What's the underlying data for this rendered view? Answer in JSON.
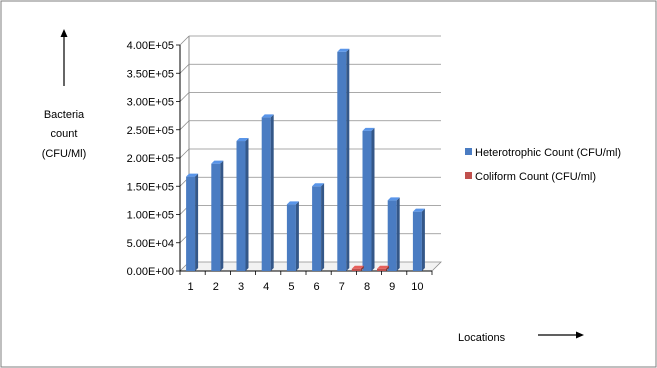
{
  "chart_data": {
    "type": "bar",
    "categories": [
      "1",
      "2",
      "3",
      "4",
      "5",
      "6",
      "7",
      "8",
      "9",
      "10"
    ],
    "series": [
      {
        "name": "Heterotrophic Count (CFU/ml)",
        "values": [
          167000,
          190000,
          230000,
          272000,
          118000,
          150000,
          388000,
          248000,
          125000,
          105000
        ]
      },
      {
        "name": "Coliform Count (CFU/ml)",
        "values": [
          0,
          0,
          0,
          0,
          0,
          0,
          4000,
          4000,
          0,
          0
        ]
      }
    ],
    "ylim": [
      0,
      400000
    ],
    "yticks": [
      "0.00E+00",
      "5.00E+04",
      "1.00E+05",
      "1.50E+05",
      "2.00E+05",
      "2.50E+05",
      "3.00E+05",
      "3.50E+05",
      "4.00E+05"
    ],
    "ylabel_lines": [
      "Bacteria",
      "count",
      "(CFU/Ml)"
    ],
    "xlabel": "Locations",
    "grid": true,
    "legend_position": "right",
    "colors": {
      "series": [
        "#4a7cc2",
        "#c0504d"
      ],
      "grid": "#8c8c8c",
      "border": "#7f7f7f"
    }
  }
}
